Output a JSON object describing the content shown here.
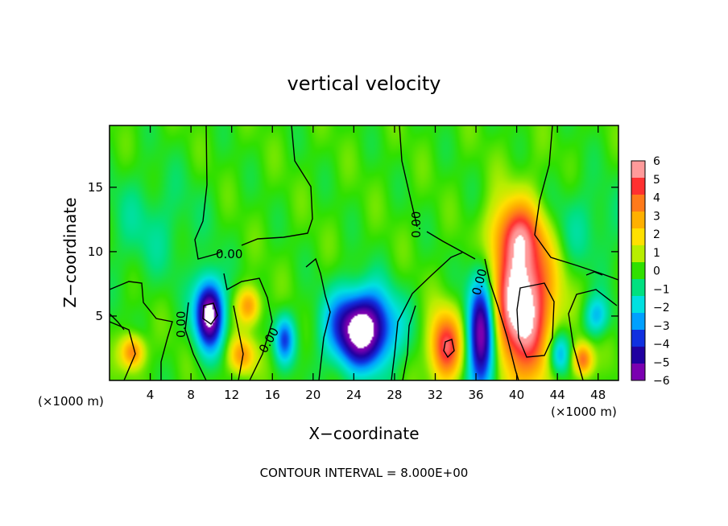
{
  "chart_data": {
    "type": "heatmap",
    "title": "vertical velocity",
    "xlabel": "X−coordinate",
    "ylabel": "Z−coordinate",
    "x_units": "(×1000 m)",
    "y_units": "(×1000 m)",
    "xlim": [
      0,
      50
    ],
    "ylim": [
      0,
      19.8
    ],
    "x_ticks": [
      4,
      8,
      12,
      16,
      20,
      24,
      28,
      32,
      36,
      40,
      44,
      48
    ],
    "y_ticks": [
      5,
      10,
      15
    ],
    "footer": "CONTOUR INTERVAL = 8.000E+00",
    "colorbar": {
      "levels": [
        6,
        5,
        4,
        3,
        2,
        1,
        0,
        -1,
        -2,
        -3,
        -4,
        -5,
        -6
      ],
      "labels": [
        "6",
        "5",
        "4",
        "3",
        "2",
        "1",
        "0",
        "−1",
        "−2",
        "−3",
        "−4",
        "−5",
        "−6"
      ],
      "colors": [
        "#ff9a9a",
        "#ff3030",
        "#ff7a1a",
        "#ffb000",
        "#ffe000",
        "#b8ee00",
        "#30e000",
        "#00e080",
        "#00e0e0",
        "#00a0ff",
        "#1030e0",
        "#2000a0",
        "#7a00b0"
      ]
    },
    "contour_labels": [
      "0.00",
      "0.00",
      "0.00",
      "0.00",
      "0.00"
    ],
    "background_color": "#44e54e",
    "saturated_color": "#ffffff",
    "features": [
      {
        "kind": "updraft",
        "x": 40.5,
        "z": 6.2,
        "sx": 2.2,
        "sy": 4.4,
        "value": 7.5
      },
      {
        "kind": "updraft",
        "x": 40.0,
        "z": 11.5,
        "sx": 2.0,
        "sy": 1.8,
        "value": 3.0
      },
      {
        "kind": "updraft",
        "x": 33.0,
        "z": 2.6,
        "sx": 1.1,
        "sy": 1.9,
        "value": 5.5
      },
      {
        "kind": "updraft",
        "x": 13.7,
        "z": 5.8,
        "sx": 0.8,
        "sy": 1.0,
        "value": 3.5
      },
      {
        "kind": "updraft",
        "x": 13.0,
        "z": 1.9,
        "sx": 0.9,
        "sy": 1.0,
        "value": 3.5
      },
      {
        "kind": "updraft",
        "x": 2.3,
        "z": 2.2,
        "sx": 0.8,
        "sy": 0.9,
        "value": 4.0
      },
      {
        "kind": "updraft",
        "x": 46.5,
        "z": 1.6,
        "sx": 0.7,
        "sy": 0.9,
        "value": 4.5
      },
      {
        "kind": "downdraft",
        "x": 24.8,
        "z": 4.0,
        "sx": 2.2,
        "sy": 2.1,
        "value": -7.5
      },
      {
        "kind": "downdraft",
        "x": 9.8,
        "z": 5.2,
        "sx": 1.0,
        "sy": 1.9,
        "value": -7.0
      },
      {
        "kind": "downdraft",
        "x": 36.6,
        "z": 3.5,
        "sx": 1.0,
        "sy": 3.6,
        "value": -7.0
      },
      {
        "kind": "downdraft",
        "x": 17.2,
        "z": 3.2,
        "sx": 0.7,
        "sy": 1.3,
        "value": -3.5
      },
      {
        "kind": "downdraft",
        "x": 44.2,
        "z": 2.0,
        "sx": 0.8,
        "sy": 1.3,
        "value": -3.5
      },
      {
        "kind": "downdraft",
        "x": 47.8,
        "z": 5.0,
        "sx": 0.9,
        "sy": 1.1,
        "value": -2.5
      },
      {
        "kind": "downdraft",
        "x": 44.5,
        "z": 12.0,
        "sx": 4.5,
        "sy": 2.5,
        "value": -1.2
      },
      {
        "kind": "downdraft",
        "x": 4.0,
        "z": 12.0,
        "sx": 3.5,
        "sy": 3.0,
        "value": -1.0
      }
    ]
  }
}
